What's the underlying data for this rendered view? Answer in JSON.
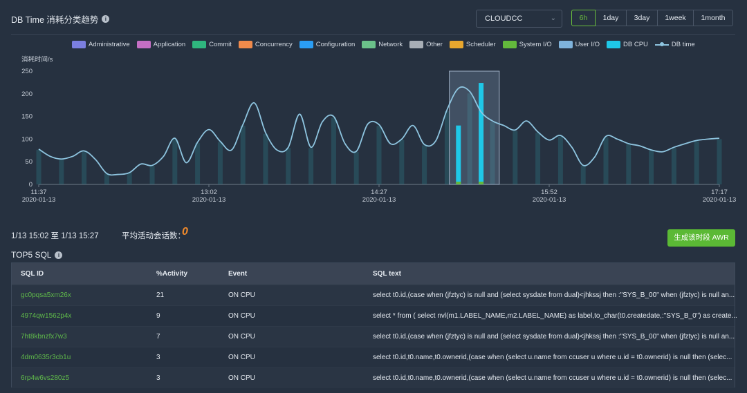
{
  "header": {
    "title": "DB Time 消耗分类趋势",
    "info_icon": "i",
    "database": "CLOUDCC",
    "ranges": [
      {
        "label": "6h",
        "active": true
      },
      {
        "label": "1day",
        "active": false
      },
      {
        "label": "3day",
        "active": false
      },
      {
        "label": "1week",
        "active": false
      },
      {
        "label": "1month",
        "active": false
      }
    ]
  },
  "legend": [
    {
      "label": "Administrative",
      "color": "#7b7fe0"
    },
    {
      "label": "Application",
      "color": "#c46fc4"
    },
    {
      "label": "Commit",
      "color": "#2fb67e"
    },
    {
      "label": "Concurrency",
      "color": "#f08a4b"
    },
    {
      "label": "Configuration",
      "color": "#2a9df4"
    },
    {
      "label": "Network",
      "color": "#6bc28a"
    },
    {
      "label": "Other",
      "color": "#a8aeb6"
    },
    {
      "label": "Scheduler",
      "color": "#e8a72e"
    },
    {
      "label": "System I/O",
      "color": "#63b93c"
    },
    {
      "label": "User I/O",
      "color": "#7fb3dc"
    },
    {
      "label": "DB CPU",
      "color": "#1fc8e8"
    },
    {
      "label": "DB time",
      "color": "#8ec5e0"
    }
  ],
  "chart_data": {
    "type": "line",
    "ylabel": "消耗时间/s",
    "ylim": [
      0,
      250
    ],
    "yticks": [
      "0",
      "50",
      "100",
      "150",
      "200",
      "250"
    ],
    "xlim": [
      0,
      60
    ],
    "xticks": [
      {
        "x": 0,
        "time": "11:37",
        "date": "2020-01-13"
      },
      {
        "x": 15,
        "time": "13:02",
        "date": "2020-01-13"
      },
      {
        "x": 30,
        "time": "14:27",
        "date": "2020-01-13"
      },
      {
        "x": 45,
        "time": "15:52",
        "date": "2020-01-13"
      },
      {
        "x": 60,
        "time": "17:17",
        "date": "2020-01-13"
      }
    ],
    "selection": [
      36.2,
      40.6
    ],
    "series": [
      {
        "name": "DB time",
        "color": "#8ec5e0",
        "values": [
          78,
          62,
          56,
          62,
          74,
          55,
          24,
          22,
          26,
          45,
          42,
          62,
          102,
          48,
          93,
          121,
          95,
          76,
          132,
          180,
          114,
          76,
          82,
          155,
          82,
          138,
          150,
          90,
          73,
          133,
          132,
          90,
          100,
          130,
          88,
          96,
          165,
          212,
          205,
          160,
          140,
          130,
          120,
          140,
          116,
          98,
          108,
          82,
          42,
          60,
          106,
          100,
          90,
          85,
          76,
          72,
          82,
          90,
          97,
          100,
          102
        ]
      },
      {
        "name": "DB CPU",
        "color": "#1fc8e8",
        "values": [
          0,
          0,
          0,
          0,
          0,
          0,
          0,
          0,
          0,
          0,
          0,
          0,
          0,
          0,
          0,
          0,
          0,
          0,
          0,
          0,
          0,
          0,
          0,
          0,
          0,
          0,
          0,
          0,
          0,
          0,
          0,
          0,
          0,
          0,
          0,
          0,
          0,
          130,
          0,
          224,
          0,
          0,
          0,
          0,
          0,
          0,
          0,
          0,
          0,
          0,
          0,
          0,
          0,
          0,
          0,
          0,
          0,
          0,
          0,
          0,
          0
        ]
      }
    ]
  },
  "summary": {
    "time_range": "1/13 15:02 至 1/13 15:27",
    "sessions_label": "平均活动会话数：",
    "sessions_value": "0",
    "awr_button": "生成该时段 AWR"
  },
  "top5": {
    "title": "TOP5 SQL",
    "info_icon": "i",
    "columns": [
      "SQL ID",
      "%Activity",
      "Event",
      "SQL text"
    ],
    "rows": [
      {
        "sql_id": "gc0pqsa5xm26x",
        "activity": "21",
        "event": "ON CPU",
        "sql_text": "select t0.id,(case when (jfztyc) is null and (select sysdate from dual)<jhkssj then :\"SYS_B_00\" when (jfztyc) is null an..."
      },
      {
        "sql_id": "4974qw1562p4x",
        "activity": "9",
        "event": "ON CPU",
        "sql_text": "select * from ( select nvl(m1.LABEL_NAME,m2.LABEL_NAME) as label,to_char(t0.createdate,:\"SYS_B_0\") as create..."
      },
      {
        "sql_id": "7ht8kbnzfx7w3",
        "activity": "7",
        "event": "ON CPU",
        "sql_text": "select t0.id,(case when (jfztyc) is null and (select sysdate from dual)<jhkssj then :\"SYS_B_00\" when (jfztyc) is null an..."
      },
      {
        "sql_id": "4dm0635r3cb1u",
        "activity": "3",
        "event": "ON CPU",
        "sql_text": "select t0.id,t0.name,t0.ownerid,(case when (select u.name from ccuser u where u.id = t0.ownerid) is null then (selec..."
      },
      {
        "sql_id": "6rp4w6vs280z5",
        "activity": "3",
        "event": "ON CPU",
        "sql_text": "select t0.id,t0.name,t0.ownerid,(case when (select u.name from ccuser u where u.id = t0.ownerid) is null then (selec..."
      }
    ]
  }
}
